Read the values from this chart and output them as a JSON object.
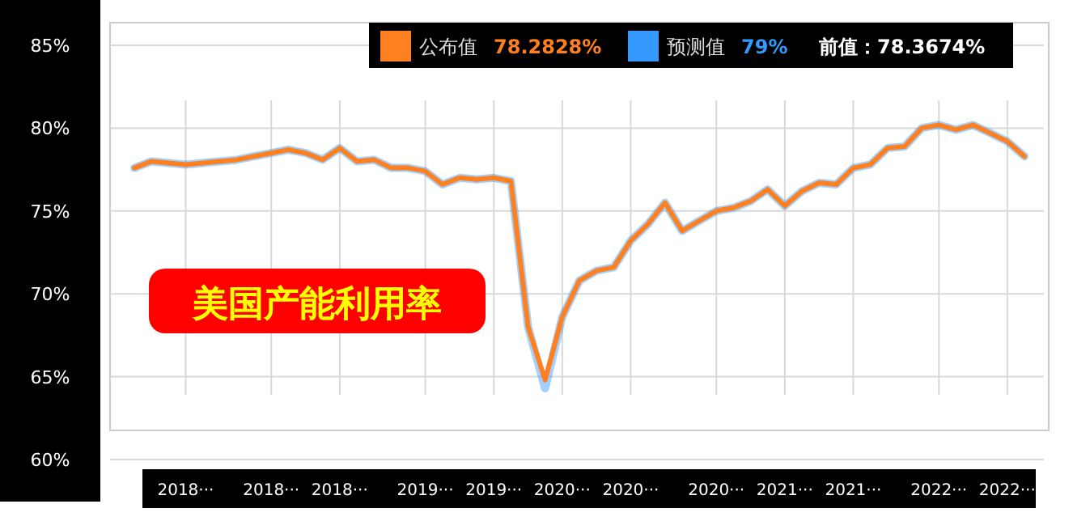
{
  "chart_data": {
    "type": "line",
    "title": "美国产能利用率",
    "categories": [
      null,
      null,
      null,
      "2018···",
      null,
      null,
      null,
      null,
      "2018···",
      null,
      null,
      null,
      "2018···",
      null,
      null,
      null,
      null,
      "2019···",
      null,
      null,
      null,
      "2019···",
      null,
      null,
      null,
      "2020···",
      null,
      null,
      null,
      "2020···",
      null,
      null,
      null,
      null,
      "2020···",
      null,
      null,
      null,
      "2021···",
      null,
      null,
      null,
      "2021···",
      null,
      null,
      null,
      null,
      "2022···",
      null,
      null,
      null,
      "2022···",
      null
    ],
    "series": [
      {
        "name": "预测值",
        "color": "#3399ff",
        "values": [
          77.6,
          78.0,
          77.9,
          77.8,
          77.9,
          78.0,
          78.1,
          78.3,
          78.5,
          78.7,
          78.5,
          78.1,
          78.8,
          78.0,
          78.1,
          77.6,
          77.6,
          77.4,
          76.6,
          77.0,
          76.9,
          77.0,
          76.8,
          68.0,
          64.3,
          68.6,
          70.8,
          71.4,
          71.6,
          73.2,
          74.2,
          75.5,
          73.8,
          74.4,
          75.0,
          75.2,
          75.6,
          76.3,
          75.3,
          76.2,
          76.7,
          76.6,
          77.6,
          77.8,
          78.8,
          78.9,
          80.0,
          80.2,
          79.9,
          80.2,
          79.7,
          79.2,
          78.3
        ]
      },
      {
        "name": "公布值",
        "color": "#ff8020",
        "values": [
          77.6,
          78.0,
          77.9,
          77.8,
          77.9,
          78.0,
          78.1,
          78.3,
          78.5,
          78.7,
          78.5,
          78.1,
          78.8,
          78.0,
          78.1,
          77.6,
          77.6,
          77.4,
          76.6,
          77.0,
          76.9,
          77.0,
          76.8,
          68.0,
          64.8,
          68.6,
          70.8,
          71.4,
          71.6,
          73.2,
          74.2,
          75.5,
          73.8,
          74.4,
          75.0,
          75.2,
          75.6,
          76.3,
          75.3,
          76.2,
          76.7,
          76.6,
          77.6,
          77.8,
          78.8,
          78.9,
          80.0,
          80.2,
          79.9,
          80.2,
          79.7,
          79.2,
          78.3
        ]
      }
    ],
    "ylim": [
      60,
      85
    ],
    "yticks": [
      {
        "value": 60,
        "label": "60%"
      },
      {
        "value": 65,
        "label": "65%"
      },
      {
        "value": 70,
        "label": "70%"
      },
      {
        "value": 75,
        "label": "75%"
      },
      {
        "value": 80,
        "label": "80%"
      },
      {
        "value": 85,
        "label": "85%"
      }
    ],
    "annotations": [
      "78.2828%",
      "79%",
      "前值：78.3674%"
    ],
    "grid": true,
    "legend": "top"
  }
}
